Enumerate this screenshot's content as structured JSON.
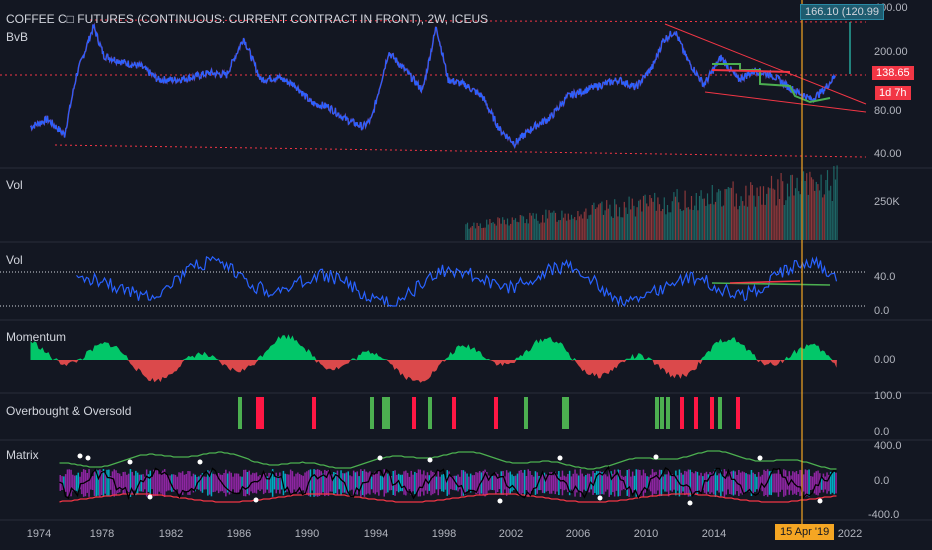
{
  "header": {
    "title": "COFFEE C□ FUTURES (CONTINUOUS: CURRENT CONTRACT IN FRONT), 2W, ICEUS",
    "indicator": "BvB"
  },
  "badges": {
    "quote": "166.10 (120.99",
    "last_price": "138.65",
    "countdown": "1d 7h",
    "crosshair_date": "15 Apr '19"
  },
  "colors": {
    "background": "#131722",
    "price_line": "#2962ff",
    "up": "#26a69a",
    "down": "#ef5350",
    "green_line": "#4caf50",
    "red_line": "#f23645",
    "crosshair": "#f5a623",
    "osc_green": "#00e676",
    "osc_red": "#ff5252",
    "purple": "#9c27b0",
    "cyan": "#00bcd4"
  },
  "panes": [
    {
      "id": "price",
      "title": "",
      "y_labels": [
        "400.00",
        "200.00",
        "80.00",
        "40.00"
      ]
    },
    {
      "id": "volume",
      "title": "Vol",
      "y_labels": [
        "250K"
      ]
    },
    {
      "id": "vol-osc",
      "title": "Vol",
      "y_labels": [
        "40.0",
        "0.0"
      ]
    },
    {
      "id": "momentum",
      "title": "Momentum",
      "y_labels": [
        "0.00"
      ]
    },
    {
      "id": "ob-os",
      "title": "Overbought & Oversold",
      "y_labels": [
        "100.0",
        "0.0"
      ]
    },
    {
      "id": "matrix",
      "title": "Matrix",
      "y_labels": [
        "400.0",
        "0.0",
        "-400.0"
      ]
    }
  ],
  "x_axis": {
    "labels": [
      "1974",
      "1978",
      "1982",
      "1986",
      "1990",
      "1994",
      "1998",
      "2002",
      "2006",
      "2010",
      "2014",
      "2022"
    ]
  },
  "chart_data": {
    "type": "line",
    "interval": "2W",
    "x": [
      1973.5,
      1974.5,
      1975.5,
      1976.2,
      1977.2,
      1977.8,
      1979.0,
      1980.0,
      1981.0,
      1982.0,
      1983.0,
      1984.0,
      1985.0,
      1986.0,
      1987.0,
      1988.0,
      1989.0,
      1990.0,
      1991.0,
      1992.0,
      1993.0,
      1993.5,
      1994.5,
      1995.5,
      1996.5,
      1997.3,
      1998.0,
      1999.0,
      2000.0,
      2001.0,
      2001.9,
      2003.0,
      2004.0,
      2005.0,
      2006.0,
      2007.0,
      2008.0,
      2009.0,
      2010.0,
      2010.6,
      2011.3,
      2012.0,
      2013.0,
      2014.0,
      2015.0,
      2016.0,
      2017.0,
      2018.0,
      2019.0,
      2019.3,
      2020.0,
      2020.7
    ],
    "series": [
      {
        "values": [
          62,
          70,
          55,
          140,
          300,
          190,
          170,
          160,
          130,
          130,
          135,
          145,
          140,
          250,
          130,
          135,
          120,
          90,
          85,
          70,
          62,
          70,
          200,
          150,
          110,
          300,
          130,
          120,
          100,
          60,
          48,
          62,
          72,
          100,
          110,
          120,
          130,
          115,
          160,
          240,
          280,
          180,
          120,
          185,
          130,
          150,
          140,
          115,
          100,
          95,
          110,
          138
        ]
      }
    ],
    "y_ticks": [
      "400.00",
      "200.00",
      "80.00",
      "40.00"
    ],
    "x_ticks": [
      "1974",
      "1978",
      "1982",
      "1986",
      "1990",
      "1994",
      "1998",
      "2002",
      "2006",
      "2010",
      "2014",
      "2022"
    ],
    "log_scale": true,
    "grid": false,
    "last_price": 138.65
  }
}
